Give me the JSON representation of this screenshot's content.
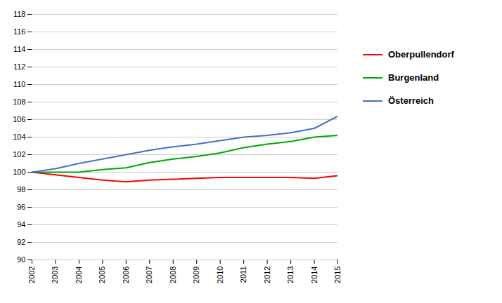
{
  "chart_data": {
    "type": "line",
    "x": [
      2002,
      2003,
      2004,
      2005,
      2006,
      2007,
      2008,
      2009,
      2010,
      2011,
      2012,
      2013,
      2014,
      2015
    ],
    "series": [
      {
        "name": "Oberpullendorf",
        "color": "#FF0000",
        "values": [
          100.0,
          99.7,
          99.4,
          99.1,
          98.9,
          99.1,
          99.2,
          99.3,
          99.4,
          99.4,
          99.4,
          99.4,
          99.3,
          99.6
        ]
      },
      {
        "name": "Burgenland",
        "color": "#00AA00",
        "values": [
          100.0,
          100.0,
          100.0,
          100.3,
          100.5,
          101.1,
          101.5,
          101.8,
          102.2,
          102.8,
          103.2,
          103.5,
          104.0,
          104.2
        ]
      },
      {
        "name": "Österreich",
        "color": "#4472C4",
        "values": [
          100.0,
          100.4,
          101.0,
          101.5,
          102.0,
          102.5,
          102.9,
          103.2,
          103.6,
          104.0,
          104.2,
          104.5,
          105.0,
          106.4
        ]
      }
    ],
    "xlim": [
      2002,
      2015
    ],
    "xticks": [
      2002,
      2003,
      2004,
      2005,
      2006,
      2007,
      2008,
      2009,
      2010,
      2011,
      2012,
      2013,
      2014,
      2015
    ],
    "ylim": [
      90,
      118
    ],
    "yticks": [
      90,
      92,
      94,
      96,
      98,
      100,
      102,
      104,
      106,
      108,
      110,
      112,
      114,
      116,
      118
    ],
    "grid": "y",
    "legend": "right"
  }
}
